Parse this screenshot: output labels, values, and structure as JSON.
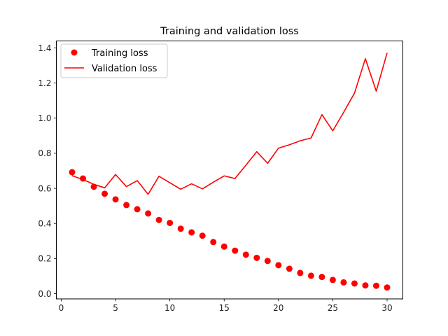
{
  "chart_data": {
    "type": "line",
    "title": "Training and validation loss",
    "xlabel": "",
    "ylabel": "",
    "xlim": [
      -0.45,
      31.45
    ],
    "ylim": [
      -0.03,
      1.44
    ],
    "xticks": [
      0,
      5,
      10,
      15,
      20,
      25,
      30
    ],
    "xtick_labels": [
      "0",
      "5",
      "10",
      "15",
      "20",
      "25",
      "30"
    ],
    "yticks": [
      0.0,
      0.2,
      0.4,
      0.6,
      0.8,
      1.0,
      1.2,
      1.4
    ],
    "ytick_labels": [
      "0.0",
      "0.2",
      "0.4",
      "0.6",
      "0.8",
      "1.0",
      "1.2",
      "1.4"
    ],
    "grid": false,
    "legend_position": "top-left",
    "x": [
      1,
      2,
      3,
      4,
      5,
      6,
      7,
      8,
      9,
      10,
      11,
      12,
      13,
      14,
      15,
      16,
      17,
      18,
      19,
      20,
      21,
      22,
      23,
      24,
      25,
      26,
      27,
      28,
      29,
      30
    ],
    "series": [
      {
        "name": "Training loss",
        "style": "markers",
        "color": "#ff0000",
        "values": [
          0.692,
          0.656,
          0.609,
          0.569,
          0.537,
          0.505,
          0.481,
          0.457,
          0.42,
          0.403,
          0.37,
          0.349,
          0.33,
          0.294,
          0.268,
          0.245,
          0.222,
          0.204,
          0.186,
          0.162,
          0.142,
          0.118,
          0.102,
          0.095,
          0.078,
          0.064,
          0.058,
          0.047,
          0.045,
          0.035
        ]
      },
      {
        "name": "Validation loss",
        "style": "line",
        "color": "#ff0000",
        "values": [
          0.672,
          0.65,
          0.623,
          0.603,
          0.679,
          0.61,
          0.644,
          0.566,
          0.669,
          0.632,
          0.595,
          0.626,
          0.597,
          0.635,
          0.671,
          0.656,
          0.732,
          0.809,
          0.743,
          0.829,
          0.848,
          0.871,
          0.887,
          1.02,
          0.928,
          1.033,
          1.143,
          1.339,
          1.154,
          1.372
        ]
      }
    ]
  }
}
